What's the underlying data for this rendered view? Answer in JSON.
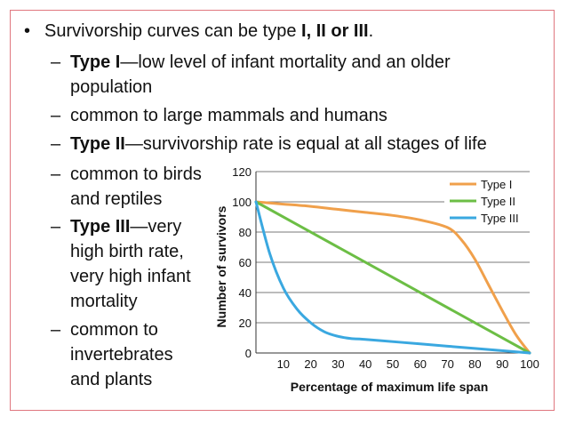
{
  "slide": {
    "bullet_marker": "•",
    "intro_prefix": "Survivorship curves can be type ",
    "intro_types": "I, II or III",
    "intro_suffix": ".",
    "dash": "–",
    "typeI_label": "Type I",
    "typeI_desc_1": "—low level of infant mortality and an older",
    "typeI_desc_2": "population",
    "typeI_example": "common to large mammals and humans",
    "typeII_label": "Type II",
    "typeII_desc": "—survivorship rate is equal at all stages of life",
    "typeII_example_1": "common to birds",
    "typeII_example_2": "and reptiles",
    "typeIII_label": "Type III",
    "typeIII_desc_1": "—very",
    "typeIII_desc_2": "high birth rate,",
    "typeIII_desc_3": "very high infant",
    "typeIII_desc_4": "mortality",
    "typeIII_example_1": "common to",
    "typeIII_example_2": "invertebrates",
    "typeIII_example_3": "and plants"
  },
  "chart_data": {
    "type": "line",
    "title": "",
    "xlabel": "Percentage of maximum life span",
    "ylabel": "Number of survivors",
    "xlim": [
      0,
      100
    ],
    "ylim": [
      0,
      120
    ],
    "xticks": [
      10,
      20,
      30,
      40,
      50,
      60,
      70,
      80,
      90,
      100
    ],
    "yticks": [
      0,
      20,
      40,
      60,
      80,
      100,
      120
    ],
    "grid": "horizontal",
    "legend_position": "top-right",
    "series": [
      {
        "name": "Type I",
        "color": "#f0a04b",
        "x": [
          0,
          10,
          20,
          30,
          40,
          50,
          60,
          70,
          75,
          80,
          85,
          90,
          95,
          100
        ],
        "y": [
          100,
          98.5,
          97,
          95,
          93,
          91,
          88,
          83,
          75,
          62,
          45,
          28,
          12,
          0
        ]
      },
      {
        "name": "Type II",
        "color": "#6cbe45",
        "x": [
          0,
          100
        ],
        "y": [
          100,
          0
        ]
      },
      {
        "name": "Type III",
        "color": "#3aa8e0",
        "x": [
          0,
          5,
          10,
          15,
          20,
          25,
          30,
          35,
          40,
          60,
          80,
          100
        ],
        "y": [
          100,
          66,
          43,
          29,
          20,
          14,
          11,
          9.5,
          9,
          6,
          3,
          0
        ]
      }
    ]
  }
}
